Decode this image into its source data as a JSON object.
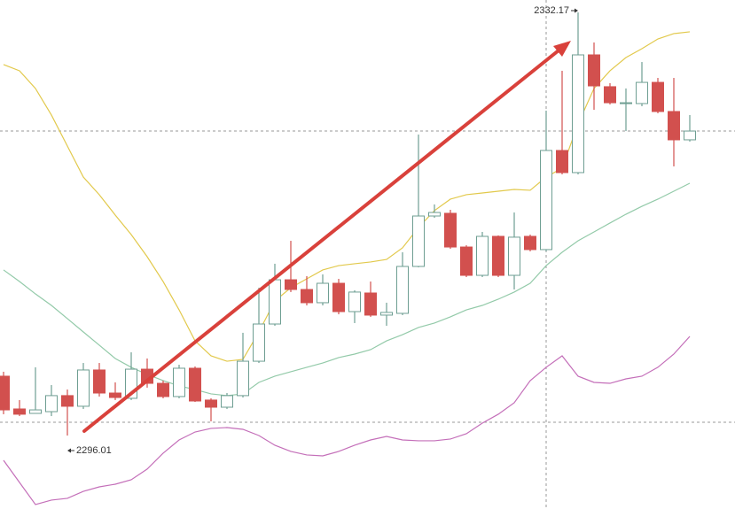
{
  "chart_data": {
    "type": "candlestick",
    "ylim": [
      2289.73,
      2333.23
    ],
    "up_color": "#6e9e92",
    "down_color": "#d2504e",
    "open": [
      2301.08,
      2298.28,
      2297.9,
      2298.05,
      2299.42,
      2298.51,
      2301.61,
      2299.64,
      2299.19,
      2301.68,
      2300.47,
      2299.34,
      2301.76,
      2299.04,
      2298.43,
      2299.42,
      2302.36,
      2305.54,
      2309.32,
      2308.49,
      2307.36,
      2309.02,
      2306.6,
      2308.19,
      2306.3,
      2306.45,
      2310.46,
      2314.77,
      2315.0,
      2312.12,
      2309.7,
      2313.03,
      2309.7,
      2313.03,
      2311.9,
      2320.37,
      2318.48,
      2328.54,
      2325.82,
      2324.38,
      2324.38,
      2326.19,
      2323.7,
      2321.28
    ],
    "high": [
      2301.46,
      2299.04,
      2301.84,
      2300.32,
      2299.94,
      2302.21,
      2302.21,
      2300.55,
      2303.12,
      2302.59,
      2300.7,
      2302.06,
      2301.91,
      2299.19,
      2299.64,
      2304.79,
      2308.64,
      2310.69,
      2312.65,
      2309.63,
      2309.78,
      2309.4,
      2308.42,
      2309.17,
      2307.36,
      2311.67,
      2321.73,
      2315.76,
      2315.3,
      2312.27,
      2313.41,
      2313.11,
      2315.07,
      2313.18,
      2323.77,
      2327.18,
      2332.17,
      2329.6,
      2326.12,
      2325.67,
      2327.93,
      2326.57,
      2326.57,
      2323.4
    ],
    "low": [
      2297.83,
      2297.67,
      2297.9,
      2297.67,
      2296.01,
      2298.28,
      2299.34,
      2299.04,
      2299.04,
      2300.1,
      2299.19,
      2299.19,
      2298.88,
      2297.22,
      2298.28,
      2299.26,
      2302.21,
      2305.39,
      2308.27,
      2307.13,
      2307.13,
      2306.37,
      2305.62,
      2306.15,
      2305.39,
      2306.3,
      2310.38,
      2314.62,
      2311.97,
      2309.55,
      2309.55,
      2309.55,
      2308.49,
      2311.75,
      2311.75,
      2318.33,
      2318.33,
      2323.85,
      2324.3,
      2322.03,
      2324.15,
      2323.55,
      2319.01,
      2321.13
    ],
    "close": [
      2298.2,
      2297.83,
      2298.2,
      2299.42,
      2298.51,
      2301.61,
      2299.64,
      2299.26,
      2301.68,
      2300.47,
      2299.34,
      2301.76,
      2298.96,
      2298.43,
      2299.42,
      2302.36,
      2305.54,
      2309.32,
      2308.49,
      2307.36,
      2309.02,
      2306.6,
      2308.27,
      2306.3,
      2306.53,
      2310.46,
      2314.77,
      2315.07,
      2312.12,
      2309.7,
      2313.03,
      2309.7,
      2312.96,
      2311.9,
      2320.37,
      2318.48,
      2328.54,
      2325.89,
      2324.45,
      2324.45,
      2326.19,
      2323.7,
      2321.28,
      2322.03
    ],
    "series": [
      {
        "color": "#e2c94c",
        "values": [
          2327.71,
          2327.18,
          2325.67,
          2323.4,
          2320.75,
          2318.1,
          2316.59,
          2314.85,
          2313.18,
          2311.29,
          2309.17,
          2306.75,
          2304.1,
          2302.82,
          2302.36,
          2302.52,
          2304.86,
          2307.51,
          2308.64,
          2309.4,
          2310.16,
          2310.53,
          2310.69,
          2310.84,
          2311.06,
          2312.05,
          2313.79,
          2315.23,
          2316.21,
          2316.59,
          2316.74,
          2316.89,
          2317.04,
          2316.97,
          2318.1,
          2318.86,
          2322.64,
          2325.67,
          2327.18,
          2328.31,
          2329.07,
          2329.9,
          2330.36,
          2330.51
        ]
      },
      {
        "color": "#93caa9",
        "values": [
          2310.16,
          2309.17,
          2308.11,
          2307.13,
          2306.0,
          2304.86,
          2303.73,
          2302.59,
          2301.84,
          2301.23,
          2300.7,
          2300.25,
          2299.94,
          2299.57,
          2299.42,
          2299.57,
          2300.55,
          2301.08,
          2301.46,
          2301.84,
          2302.21,
          2302.67,
          2302.97,
          2303.35,
          2304.1,
          2304.63,
          2305.24,
          2305.62,
          2306.15,
          2306.75,
          2307.13,
          2307.66,
          2308.27,
          2309.02,
          2310.53,
          2311.67,
          2312.65,
          2313.41,
          2314.17,
          2314.92,
          2315.6,
          2316.21,
          2316.89,
          2317.57
        ]
      },
      {
        "color": "#c46fb9",
        "values": [
          2293.89,
          2292.0,
          2290.11,
          2290.49,
          2290.64,
          2291.24,
          2291.62,
          2291.85,
          2292.23,
          2293.14,
          2294.5,
          2295.63,
          2296.31,
          2296.62,
          2296.69,
          2296.54,
          2296.01,
          2295.18,
          2294.65,
          2294.35,
          2294.27,
          2294.65,
          2295.18,
          2295.63,
          2295.93,
          2295.63,
          2295.56,
          2295.56,
          2295.71,
          2296.16,
          2297.07,
          2297.83,
          2298.81,
          2300.7,
          2301.84,
          2302.82,
          2301.08,
          2300.55,
          2300.47,
          2300.85,
          2301.08,
          2301.84,
          2302.97,
          2304.48
        ]
      }
    ],
    "max_marker": 2332.17,
    "min_marker": 2296.01
  }
}
